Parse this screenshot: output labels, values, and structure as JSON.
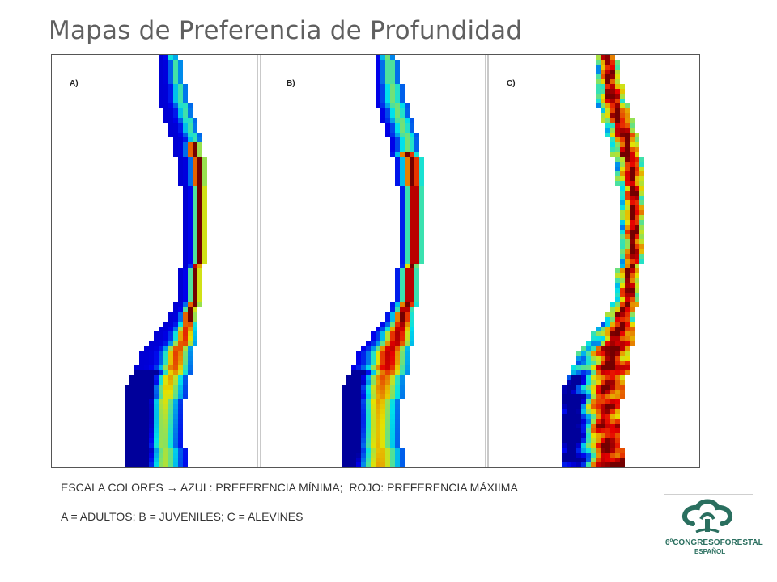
{
  "title": "Mapas de Preferencia de Profundidad",
  "panels": [
    {
      "label": "A)",
      "variant": "adultos"
    },
    {
      "label": "B)",
      "variant": "juveniles"
    },
    {
      "label": "C)",
      "variant": "alevines"
    }
  ],
  "caption": {
    "line1_prefix": "ESCALA COLORES",
    "line1_arrow": "→",
    "line1_rest": "AZUL: PREFERENCIA MÍNIMA;  ROJO: PREFERENCIA MÁXIIMA",
    "line2": "A = ADULTOS; B = JUVENILES; C = ALEVINES"
  },
  "logo": {
    "line1_prefix": "6ºCONGRESO",
    "line1_suffix": "FORESTAL",
    "line2": "ESPAÑOL"
  },
  "colors": {
    "title": "#5f5f5f",
    "logo": "#2a6f5f",
    "min_preference": "#1f3fe0",
    "max_preference": "#e8140c"
  }
}
